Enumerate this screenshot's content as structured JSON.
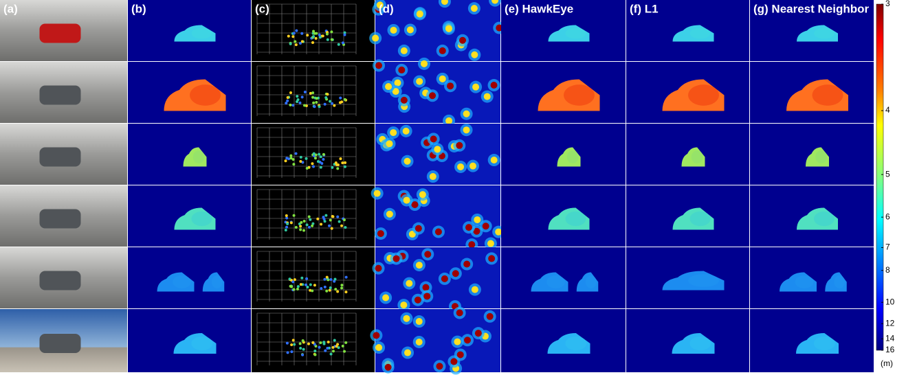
{
  "panels": [
    {
      "label": "(a)"
    },
    {
      "label": "(b)"
    },
    {
      "label": "(c)"
    },
    {
      "label": "(d)"
    },
    {
      "label": "(e) HawkEye"
    },
    {
      "label": "(f) L1"
    },
    {
      "label": "(g) Nearest Neighbor"
    }
  ],
  "colorbar": {
    "range": [
      3,
      16
    ],
    "ticks": [
      3,
      4,
      5,
      6,
      7,
      8,
      10,
      12,
      14,
      16
    ],
    "scale": "inverse",
    "unit": "(m)"
  }
}
